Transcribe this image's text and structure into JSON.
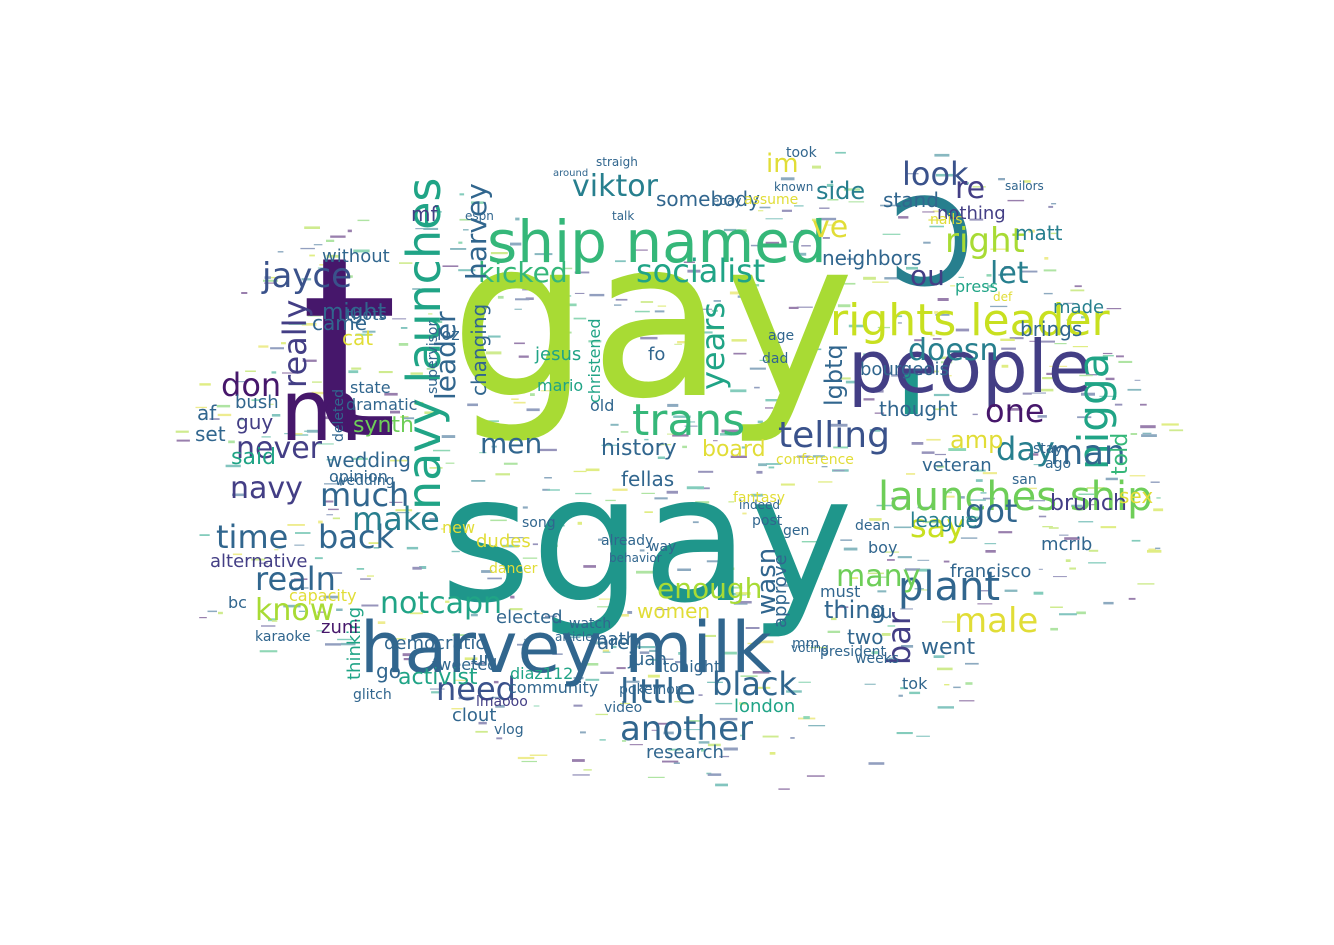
{
  "cloud": {
    "palette": {
      "dark_purple": "#46176b",
      "purple": "#433e85",
      "indigo": "#3a528b",
      "blue": "#31668e",
      "teal_blue": "#277f8e",
      "teal": "#1f968b",
      "green_teal": "#20a486",
      "green": "#35b779",
      "light_green": "#6ece58",
      "lime": "#a8db34",
      "yellow_green": "#c8e020",
      "yellow": "#e1dd37"
    },
    "words": [
      {
        "text": "gay",
        "color": "#a8db34"
      },
      {
        "text": "t",
        "color": "#46176b"
      },
      {
        "text": "sgay",
        "color": "#1f968b"
      },
      {
        "text": "'",
        "color": "#1f968b"
      },
      {
        "text": "Ↄ",
        "color": "#277f8e"
      },
      {
        "text": "people",
        "color": "#433e85"
      },
      {
        "text": "harvey milk",
        "color": "#31668e"
      },
      {
        "text": "ship named",
        "color": "#35b779"
      },
      {
        "text": "m",
        "color": "#46176b"
      },
      {
        "text": "navy launches",
        "color": "#20a486"
      },
      {
        "text": "rights leader",
        "color": "#c8e020"
      },
      {
        "text": "launches ship",
        "color": "#6ece58"
      },
      {
        "text": "plant",
        "color": "#31668e"
      },
      {
        "text": "nigga",
        "color": "#20a486"
      },
      {
        "text": "trans",
        "color": "#35b779"
      },
      {
        "text": "telling",
        "color": "#3a528b"
      },
      {
        "text": "black",
        "color": "#31668e"
      },
      {
        "text": "another",
        "color": "#31668e"
      },
      {
        "text": "little",
        "color": "#31668e"
      },
      {
        "text": "need",
        "color": "#3a528b"
      },
      {
        "text": "know",
        "color": "#a8db34"
      },
      {
        "text": "realn",
        "color": "#31668e"
      },
      {
        "text": "time",
        "color": "#31668e"
      },
      {
        "text": "back",
        "color": "#31668e"
      },
      {
        "text": "much",
        "color": "#31668e"
      },
      {
        "text": "make",
        "color": "#277f8e"
      },
      {
        "text": "navy",
        "color": "#433e85"
      },
      {
        "text": "never",
        "color": "#433e85"
      },
      {
        "text": "don",
        "color": "#46176b"
      },
      {
        "text": "jayce",
        "color": "#3a528b"
      },
      {
        "text": "viktor",
        "color": "#277f8e"
      },
      {
        "text": "kicked",
        "color": "#35b779"
      },
      {
        "text": "socialist",
        "color": "#20a486"
      },
      {
        "text": "look",
        "color": "#3a528b"
      },
      {
        "text": "re",
        "color": "#433e85"
      },
      {
        "text": "right",
        "color": "#a8db34"
      },
      {
        "text": "ou",
        "color": "#433e85"
      },
      {
        "text": "doesn",
        "color": "#277f8e"
      },
      {
        "text": "one",
        "color": "#46176b"
      },
      {
        "text": "day",
        "color": "#277f8e"
      },
      {
        "text": "man",
        "color": "#31668e"
      },
      {
        "text": "got",
        "color": "#31668e"
      },
      {
        "text": "say",
        "color": "#c8e020"
      },
      {
        "text": "many",
        "color": "#6ece58"
      },
      {
        "text": "male",
        "color": "#e1dd37"
      },
      {
        "text": "enough",
        "color": "#a8db34"
      },
      {
        "text": "notcapn",
        "color": "#20a486"
      },
      {
        "text": "men",
        "color": "#31668e"
      },
      {
        "text": "years",
        "color": "#20a486"
      },
      {
        "text": "bar",
        "color": "#433e85"
      },
      {
        "text": "lgbtq",
        "color": "#31668e"
      },
      {
        "text": "amp",
        "color": "#e1dd37"
      },
      {
        "text": "let",
        "color": "#277f8e"
      },
      {
        "text": "matt",
        "color": "#277f8e"
      },
      {
        "text": "ve",
        "color": "#e1dd37"
      },
      {
        "text": "im",
        "color": "#e1dd37"
      },
      {
        "text": "side",
        "color": "#277f8e"
      },
      {
        "text": "stand",
        "color": "#31668e"
      },
      {
        "text": "nothing",
        "color": "#433e85"
      },
      {
        "text": "neighbors",
        "color": "#31668e"
      },
      {
        "text": "brunch",
        "color": "#433e85"
      },
      {
        "text": "told",
        "color": "#35b779"
      },
      {
        "text": "veteran",
        "color": "#31668e"
      },
      {
        "text": "league",
        "color": "#277f8e"
      },
      {
        "text": "francisco",
        "color": "#31668e"
      },
      {
        "text": "wasn",
        "color": "#31668e"
      },
      {
        "text": "board",
        "color": "#e1dd37"
      },
      {
        "text": "history",
        "color": "#31668e"
      },
      {
        "text": "fellas",
        "color": "#31668e"
      },
      {
        "text": "went",
        "color": "#31668e"
      },
      {
        "text": "thought",
        "color": "#31668e"
      },
      {
        "text": "bourgeois",
        "color": "#31668e"
      },
      {
        "text": "brings",
        "color": "#31668e"
      },
      {
        "text": "made",
        "color": "#277f8e"
      },
      {
        "text": "sex",
        "color": "#e1dd37"
      },
      {
        "text": "mcrib",
        "color": "#31668e"
      },
      {
        "text": "thing",
        "color": "#31668e"
      },
      {
        "text": "women",
        "color": "#e1dd37"
      },
      {
        "text": "aren",
        "color": "#31668e"
      },
      {
        "text": "juan",
        "color": "#31668e"
      },
      {
        "text": "math",
        "color": "#31668e"
      },
      {
        "text": "tonight",
        "color": "#31668e"
      },
      {
        "text": "london",
        "color": "#20a486"
      },
      {
        "text": "research",
        "color": "#31668e"
      },
      {
        "text": "community",
        "color": "#31668e"
      },
      {
        "text": "activist",
        "color": "#20a486"
      },
      {
        "text": "democratic",
        "color": "#31668e"
      },
      {
        "text": "elected",
        "color": "#31668e"
      },
      {
        "text": "tweeted",
        "color": "#31668e"
      },
      {
        "text": "clout",
        "color": "#31668e"
      },
      {
        "text": "diaz112",
        "color": "#20a486"
      },
      {
        "text": "lmaooo",
        "color": "#433e85"
      },
      {
        "text": "alternative",
        "color": "#433e85"
      },
      {
        "text": "bush",
        "color": "#31668e"
      },
      {
        "text": "af",
        "color": "#31668e"
      },
      {
        "text": "guy",
        "color": "#433e85"
      },
      {
        "text": "set",
        "color": "#31668e"
      },
      {
        "text": "said",
        "color": "#20a486"
      },
      {
        "text": "wedding",
        "color": "#31668e"
      },
      {
        "text": "cat",
        "color": "#e1dd37"
      },
      {
        "text": "might",
        "color": "#31668e"
      },
      {
        "text": "came",
        "color": "#31668e"
      },
      {
        "text": "state",
        "color": "#31668e"
      },
      {
        "text": "without",
        "color": "#31668e"
      },
      {
        "text": "mf",
        "color": "#433e85"
      },
      {
        "text": "thots",
        "color": "#31668e"
      },
      {
        "text": "really",
        "color": "#433e85"
      },
      {
        "text": "go",
        "color": "#31668e"
      },
      {
        "text": "thinking",
        "color": "#20a486"
      },
      {
        "text": "ur",
        "color": "#31668e"
      },
      {
        "text": "zuni",
        "color": "#46176b"
      },
      {
        "text": "karaoke",
        "color": "#31668e"
      },
      {
        "text": "bc",
        "color": "#31668e"
      },
      {
        "text": "capacity",
        "color": "#e1dd37"
      },
      {
        "text": "synth",
        "color": "#6ece58"
      },
      {
        "text": "opinion",
        "color": "#31668e"
      },
      {
        "text": "new",
        "color": "#e1dd37"
      },
      {
        "text": "dudes",
        "color": "#e1dd37"
      },
      {
        "text": "dancer",
        "color": "#e1dd37"
      },
      {
        "text": "jesus",
        "color": "#20a486"
      },
      {
        "text": "mario",
        "color": "#20a486"
      },
      {
        "text": "old",
        "color": "#31668e"
      },
      {
        "text": "two",
        "color": "#31668e"
      },
      {
        "text": "au",
        "color": "#31668e"
      },
      {
        "text": "must",
        "color": "#31668e"
      },
      {
        "text": "tok",
        "color": "#31668e"
      },
      {
        "text": "boy",
        "color": "#31668e"
      },
      {
        "text": "press",
        "color": "#20a486"
      },
      {
        "text": "took",
        "color": "#31668e"
      },
      {
        "text": "somebody",
        "color": "#31668e"
      },
      {
        "text": "pokemon",
        "color": "#31668e"
      },
      {
        "text": "video",
        "color": "#31668e"
      },
      {
        "text": "watch",
        "color": "#31668e"
      },
      {
        "text": "approve",
        "color": "#31668e"
      },
      {
        "text": "fantasy",
        "color": "#e1dd37"
      },
      {
        "text": "already",
        "color": "#31668e"
      },
      {
        "text": "song",
        "color": "#31668e"
      },
      {
        "text": "supervisor",
        "color": "#31668e"
      },
      {
        "text": "dramatic",
        "color": "#31668e"
      },
      {
        "text": "deleted",
        "color": "#31668e"
      },
      {
        "text": "glitch",
        "color": "#31668e"
      },
      {
        "text": "vlog",
        "color": "#31668e"
      },
      {
        "text": "loz",
        "color": "#31668e"
      },
      {
        "text": "changing",
        "color": "#31668e"
      },
      {
        "text": "harvey",
        "color": "#31668e"
      },
      {
        "text": "leader",
        "color": "#31668e"
      },
      {
        "text": "christened",
        "color": "#20a486"
      },
      {
        "text": "age",
        "color": "#31668e"
      },
      {
        "text": "dad",
        "color": "#31668e"
      },
      {
        "text": "conference",
        "color": "#e1dd37"
      },
      {
        "text": "dean",
        "color": "#31668e"
      },
      {
        "text": "president",
        "color": "#31668e"
      },
      {
        "text": "weeks",
        "color": "#31668e"
      },
      {
        "text": "mm",
        "color": "#31668e"
      },
      {
        "text": "voting",
        "color": "#31668e"
      },
      {
        "text": "ago",
        "color": "#31668e"
      },
      {
        "text": "stay",
        "color": "#31668e"
      },
      {
        "text": "san",
        "color": "#31668e"
      },
      {
        "text": "ebay",
        "color": "#31668e"
      },
      {
        "text": "known",
        "color": "#31668e"
      },
      {
        "text": "assume",
        "color": "#e1dd37"
      },
      {
        "text": "def",
        "color": "#e1dd37"
      },
      {
        "text": "nails",
        "color": "#e1dd37"
      },
      {
        "text": "talk",
        "color": "#31668e"
      },
      {
        "text": "espn",
        "color": "#31668e"
      },
      {
        "text": "article",
        "color": "#31668e"
      },
      {
        "text": "post",
        "color": "#31668e"
      },
      {
        "text": "gen",
        "color": "#31668e"
      },
      {
        "text": "indeed",
        "color": "#31668e"
      },
      {
        "text": "behavior",
        "color": "#31668e"
      },
      {
        "text": "way",
        "color": "#31668e"
      },
      {
        "text": "fo",
        "color": "#31668e"
      },
      {
        "text": "straigh",
        "color": "#31668e"
      },
      {
        "text": "around",
        "color": "#31668e"
      },
      {
        "text": "sailors",
        "color": "#31668e"
      },
      {
        "text": "wedding",
        "color": "#31668e"
      }
    ]
  }
}
